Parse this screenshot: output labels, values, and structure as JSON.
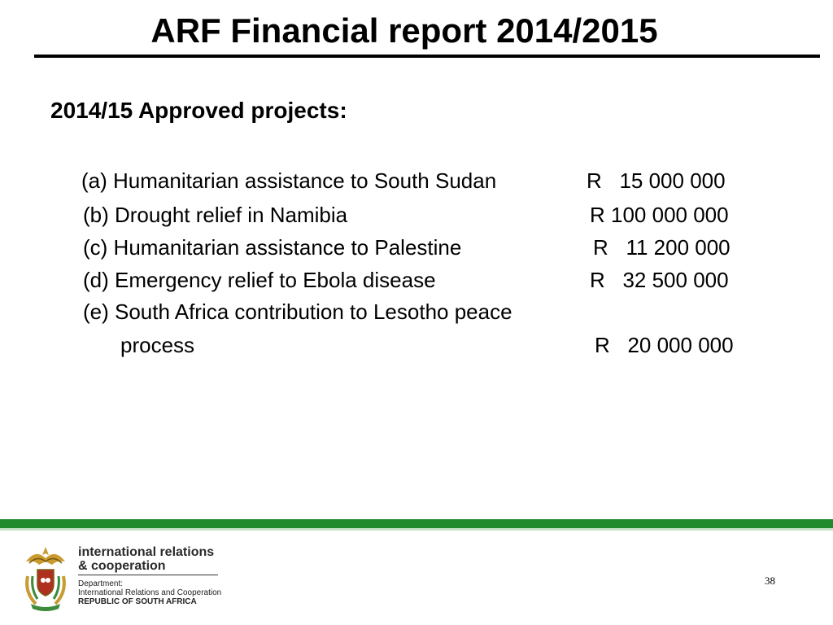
{
  "slide": {
    "title": "ARF Financial report 2014/2015",
    "subtitle": "2014/15 Approved projects:",
    "page_number": "38"
  },
  "projects": [
    {
      "text": "(a) Humanitarian assistance to South Sudan",
      "amount": "R   15 000 000"
    },
    {
      "text": "(b) Drought relief in Namibia",
      "amount": "R 100 000 000"
    },
    {
      "text": "(c) Humanitarian assistance to Palestine",
      "amount": "R   11 200 000"
    },
    {
      "text": "(d) Emergency relief to Ebola disease",
      "amount": "R   32 500 000"
    },
    {
      "text": "(e) South Africa contribution to Lesotho peace",
      "amount": ""
    },
    {
      "text": "process",
      "amount": "R   20 000 000"
    }
  ],
  "footer": {
    "brand_line1": "international relations",
    "brand_line2": "& cooperation",
    "dept_line1": "Department:",
    "dept_line2": "International Relations and Cooperation",
    "dept_line3": "REPUBLIC OF SOUTH AFRICA",
    "colors": {
      "bar": "#1f8a2e",
      "bar_light": "#c9e3cc",
      "coat_gold": "#c99a2e",
      "coat_green": "#3c8a3a",
      "coat_red": "#b03020"
    },
    "logo_icon": "coat-of-arms-icon"
  }
}
